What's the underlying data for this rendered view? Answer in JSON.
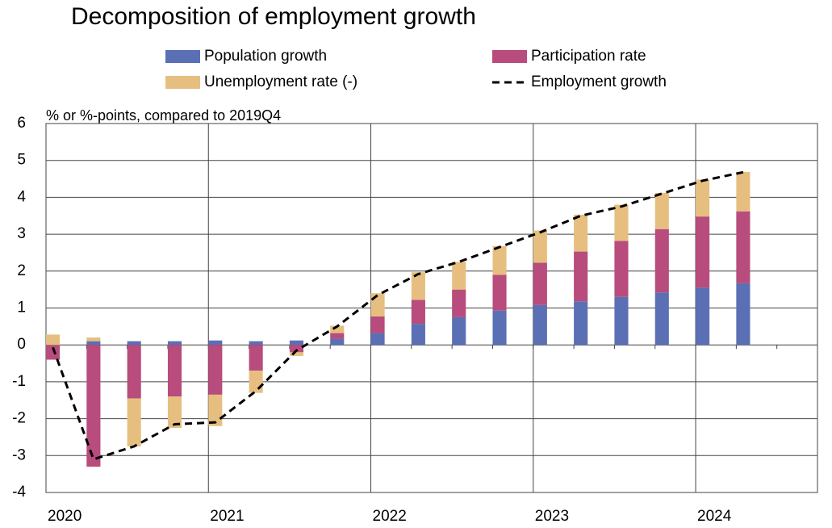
{
  "chart_data": {
    "type": "bar",
    "stacked": true,
    "title": "Decomposition of employment growth",
    "y_label": "% or %-points, compared to 2019Q4",
    "categories": [
      "2020",
      null,
      null,
      null,
      "2021",
      null,
      null,
      null,
      "2022",
      null,
      null,
      null,
      "2023",
      null,
      null,
      null,
      "2024",
      null,
      null
    ],
    "series": [
      {
        "name": "Population growth",
        "color": "#5b6fb5",
        "type": "bar",
        "values": [
          0,
          0.1,
          0.1,
          0.1,
          0.12,
          0.1,
          0.12,
          0.17,
          0.32,
          0.57,
          0.75,
          0.93,
          1.08,
          1.18,
          1.3,
          1.42,
          1.55,
          1.67,
          null
        ]
      },
      {
        "name": "Participation rate",
        "color": "#b84c7c",
        "type": "bar",
        "values": [
          -0.4,
          -3.3,
          -1.45,
          -1.4,
          -1.35,
          -0.7,
          -0.2,
          0.15,
          0.45,
          0.65,
          0.75,
          0.97,
          1.15,
          1.35,
          1.52,
          1.72,
          1.93,
          1.95,
          null
        ]
      },
      {
        "name": "Unemployment rate (-)",
        "color": "#e6bf80",
        "type": "bar",
        "values": [
          0.28,
          0.1,
          -1.3,
          -0.85,
          -0.85,
          -0.6,
          -0.1,
          0.2,
          0.63,
          0.75,
          0.75,
          0.78,
          0.87,
          1.0,
          0.98,
          0.98,
          1.0,
          1.07,
          null
        ]
      },
      {
        "name": "Employment growth",
        "color": "#000000",
        "type": "line",
        "dashed": true,
        "values": [
          -0.07,
          -3.1,
          -2.75,
          -2.15,
          -2.1,
          -1.25,
          -0.15,
          0.5,
          1.35,
          1.92,
          2.25,
          2.65,
          3.05,
          3.5,
          3.75,
          4.1,
          4.45,
          4.68,
          null
        ]
      }
    ],
    "ylim": [
      -4,
      6
    ],
    "yticks": [
      -4,
      -3,
      -2,
      -1,
      0,
      1,
      2,
      3,
      4,
      5,
      6
    ],
    "grid": true
  }
}
